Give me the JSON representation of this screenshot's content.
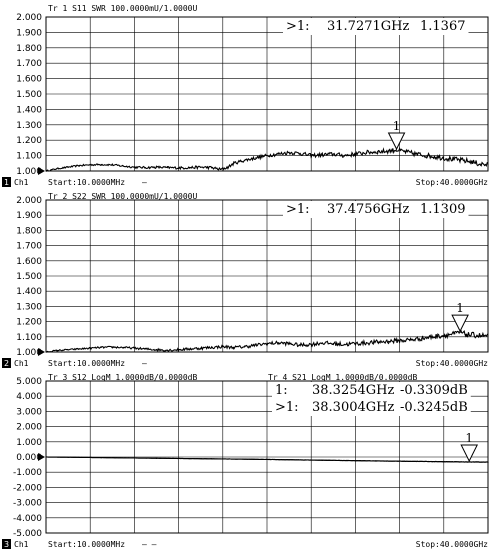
{
  "chart_data": [
    {
      "type": "line",
      "trace_header": "Tr 1  S11  SWR 100.0000mU/1.0000U",
      "ylim": [
        1.0,
        2.0
      ],
      "ytick_labels": [
        "2.000",
        "1.900",
        "1.800",
        "1.700",
        "1.600",
        "1.500",
        "1.400",
        "1.300",
        "1.200",
        "1.100",
        "1.000"
      ],
      "x_start": "Start:10.0000MHz",
      "x_stop": "Stop:40.0000GHz",
      "channel": "Ch1",
      "channel_number": "1",
      "footer_marker": "—",
      "xlim_ghz": [
        0.01,
        40.0
      ],
      "grid": true,
      "marker_readouts": [
        {
          "prefix": ">1:",
          "freq": "31.7271GHz",
          "value": "1.1367"
        }
      ],
      "markers": [
        {
          "label": "1",
          "x_ghz": 31.7271,
          "y": 1.1367
        }
      ],
      "series": [
        {
          "values": [
            [
              0.01,
              1.0
            ],
            [
              1.0,
              1.015
            ],
            [
              2.0,
              1.025
            ],
            [
              3.0,
              1.035
            ],
            [
              4.0,
              1.04
            ],
            [
              5.0,
              1.042
            ],
            [
              6.0,
              1.04
            ],
            [
              7.0,
              1.032
            ],
            [
              8.0,
              1.025
            ],
            [
              9.0,
              1.022
            ],
            [
              10.0,
              1.025
            ],
            [
              11.0,
              1.022
            ],
            [
              12.0,
              1.02
            ],
            [
              13.0,
              1.022
            ],
            [
              14.0,
              1.025
            ],
            [
              15.0,
              1.022
            ],
            [
              15.8,
              1.01
            ],
            [
              16.5,
              1.025
            ],
            [
              17.0,
              1.05
            ],
            [
              18.0,
              1.07
            ],
            [
              19.0,
              1.085
            ],
            [
              20.0,
              1.1
            ],
            [
              21.0,
              1.11
            ],
            [
              22.0,
              1.12
            ],
            [
              23.0,
              1.115
            ],
            [
              24.0,
              1.1
            ],
            [
              25.0,
              1.105
            ],
            [
              26.0,
              1.11
            ],
            [
              27.0,
              1.1
            ],
            [
              28.0,
              1.11
            ],
            [
              29.0,
              1.12
            ],
            [
              30.0,
              1.125
            ],
            [
              31.0,
              1.13
            ],
            [
              31.7,
              1.137
            ],
            [
              32.5,
              1.125
            ],
            [
              33.5,
              1.11
            ],
            [
              34.5,
              1.1
            ],
            [
              35.5,
              1.09
            ],
            [
              36.5,
              1.08
            ],
            [
              37.5,
              1.07
            ],
            [
              38.5,
              1.06
            ],
            [
              39.3,
              1.045
            ],
            [
              40.0,
              1.04
            ]
          ],
          "noise": 0.01
        }
      ]
    },
    {
      "type": "line",
      "trace_header": "Tr 2  S22  SWR 100.0000mU/1.0000U",
      "ylim": [
        1.0,
        2.0
      ],
      "ytick_labels": [
        "2.000",
        "1.900",
        "1.800",
        "1.700",
        "1.600",
        "1.500",
        "1.400",
        "1.300",
        "1.200",
        "1.100",
        "1.000"
      ],
      "x_start": "Start:10.0000MHz",
      "x_stop": "Stop:40.0000GHz",
      "channel": "Ch1",
      "channel_number": "2",
      "footer_marker": "—",
      "xlim_ghz": [
        0.01,
        40.0
      ],
      "grid": true,
      "marker_readouts": [
        {
          "prefix": ">1:",
          "freq": "37.4756GHz",
          "value": "1.1309"
        }
      ],
      "markers": [
        {
          "label": "1",
          "x_ghz": 37.4756,
          "y": 1.1309
        }
      ],
      "series": [
        {
          "values": [
            [
              0.01,
              1.0
            ],
            [
              1.0,
              1.01
            ],
            [
              2.0,
              1.015
            ],
            [
              3.0,
              1.02
            ],
            [
              4.0,
              1.025
            ],
            [
              5.0,
              1.03
            ],
            [
              6.0,
              1.032
            ],
            [
              7.0,
              1.03
            ],
            [
              8.0,
              1.025
            ],
            [
              9.0,
              1.02
            ],
            [
              10.0,
              1.015
            ],
            [
              11.0,
              1.012
            ],
            [
              12.0,
              1.015
            ],
            [
              13.0,
              1.02
            ],
            [
              14.0,
              1.025
            ],
            [
              15.0,
              1.03
            ],
            [
              16.0,
              1.035
            ],
            [
              17.0,
              1.03
            ],
            [
              18.0,
              1.035
            ],
            [
              19.0,
              1.045
            ],
            [
              20.0,
              1.055
            ],
            [
              21.0,
              1.06
            ],
            [
              22.0,
              1.055
            ],
            [
              23.0,
              1.045
            ],
            [
              24.0,
              1.05
            ],
            [
              25.0,
              1.06
            ],
            [
              26.0,
              1.055
            ],
            [
              27.0,
              1.05
            ],
            [
              28.0,
              1.055
            ],
            [
              29.0,
              1.06
            ],
            [
              30.0,
              1.065
            ],
            [
              31.0,
              1.07
            ],
            [
              32.0,
              1.075
            ],
            [
              33.0,
              1.08
            ],
            [
              34.0,
              1.09
            ],
            [
              35.0,
              1.1
            ],
            [
              36.0,
              1.11
            ],
            [
              37.0,
              1.12
            ],
            [
              37.5,
              1.131
            ],
            [
              38.0,
              1.115
            ],
            [
              39.0,
              1.11
            ],
            [
              40.0,
              1.105
            ]
          ],
          "noise": 0.01
        }
      ]
    },
    {
      "type": "line",
      "trace_header": "Tr 3  S12 LogM 1.0000dB/0.0000dB",
      "trace_header_2": "Tr 4  S21 LogM 1.0000dB/0.0000dB",
      "ylim": [
        -5.0,
        5.0
      ],
      "ytick_labels": [
        "5.000",
        "4.000",
        "3.000",
        "2.000",
        "1.000",
        "0.000",
        "-1.000",
        "-2.000",
        "-3.000",
        "-4.000",
        "-5.000"
      ],
      "x_start": "Start:10.0000MHz",
      "x_stop": "Stop:40.0000GHz",
      "channel": "Ch1",
      "channel_number": "3",
      "footer_marker": "— —",
      "xlim_ghz": [
        0.01,
        40.0
      ],
      "grid": true,
      "marker_readouts": [
        {
          "prefix": "1:",
          "freq": "38.3254GHz",
          "value": "-0.3309dB"
        },
        {
          "prefix": ">1:",
          "freq": "38.3004GHz",
          "value": "-0.3245dB"
        }
      ],
      "markers": [
        {
          "label": "1",
          "x_ghz": 38.3,
          "y": -0.33
        }
      ],
      "series": [
        {
          "values": [
            [
              0.01,
              0.0
            ],
            [
              5.0,
              -0.04
            ],
            [
              10.0,
              -0.08
            ],
            [
              15.0,
              -0.12
            ],
            [
              20.0,
              -0.16
            ],
            [
              25.0,
              -0.21
            ],
            [
              30.0,
              -0.26
            ],
            [
              35.0,
              -0.3
            ],
            [
              38.3,
              -0.33
            ],
            [
              40.0,
              -0.34
            ]
          ],
          "noise": 0.006
        },
        {
          "values": [
            [
              0.01,
              0.0
            ],
            [
              5.0,
              -0.04
            ],
            [
              10.0,
              -0.08
            ],
            [
              15.0,
              -0.12
            ],
            [
              20.0,
              -0.16
            ],
            [
              25.0,
              -0.21
            ],
            [
              30.0,
              -0.26
            ],
            [
              35.0,
              -0.3
            ],
            [
              38.3,
              -0.325
            ],
            [
              40.0,
              -0.33
            ]
          ],
          "noise": 0.006
        }
      ]
    }
  ]
}
